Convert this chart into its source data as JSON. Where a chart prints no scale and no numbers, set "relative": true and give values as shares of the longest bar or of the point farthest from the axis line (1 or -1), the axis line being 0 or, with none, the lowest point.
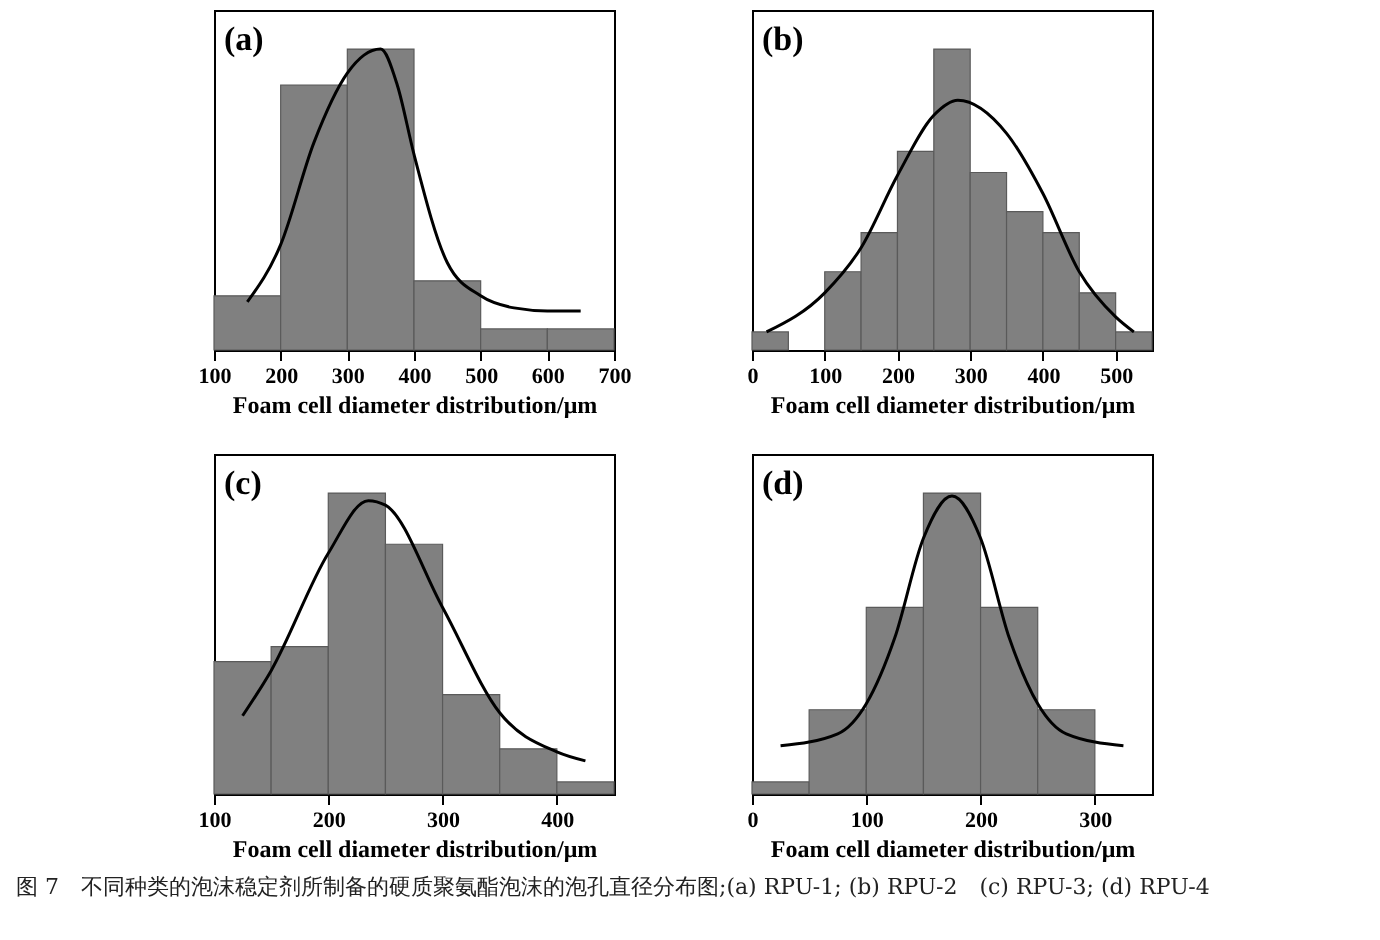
{
  "chart_data": [
    {
      "type": "histogram",
      "title": "(a)",
      "xlabel": "Foam cell diameter distribution/μm",
      "relative": true,
      "tick_labels": "x",
      "color": "#808080",
      "xlim": [
        100,
        700
      ],
      "xticks": [
        100,
        200,
        300,
        400,
        500,
        600,
        700
      ],
      "bins": [
        100,
        200,
        300,
        400,
        500,
        600,
        700
      ],
      "values": [
        0.18,
        0.88,
        1,
        0.23,
        0.07,
        0.07
      ],
      "series": [
        {
          "type": "line",
          "color": "#000000",
          "x": [
            150,
            200,
            250,
            300,
            325,
            350,
            375,
            400,
            450,
            500,
            550,
            600,
            650
          ],
          "values": [
            0.16,
            0.35,
            0.69,
            0.92,
            0.98,
            1,
            0.88,
            0.65,
            0.29,
            0.18,
            0.14,
            0.13,
            0.13
          ]
        }
      ],
      "annotations": [
        "图 7　不同种类的泡沫稳定剂所制备的硬质聚氨酯泡沫的泡孔直径分布图;(a) RPU-1; (b) RPU-2　(c) RPU-3; (d) RPU-4"
      ]
    },
    {
      "type": "histogram",
      "title": "(b)",
      "xlabel": "Foam cell diameter distribution/μm",
      "relative": true,
      "tick_labels": "x",
      "color": "#808080",
      "xlim": [
        0,
        550
      ],
      "xticks": [
        0,
        100,
        200,
        300,
        400,
        500
      ],
      "bins": [
        0,
        50,
        100,
        150,
        200,
        250,
        300,
        350,
        400,
        450,
        500,
        550
      ],
      "values": [
        0.06,
        0,
        0.26,
        0.39,
        0.66,
        1,
        0.59,
        0.46,
        0.39,
        0.19,
        0.06
      ],
      "series": [
        {
          "type": "line",
          "color": "#000000",
          "x": [
            20,
            100,
            150,
            200,
            250,
            283,
            350,
            400,
            450,
            500,
            525
          ],
          "values": [
            0.06,
            0.19,
            0.34,
            0.58,
            0.78,
            0.83,
            0.72,
            0.52,
            0.26,
            0.11,
            0.06
          ]
        }
      ]
    },
    {
      "type": "histogram",
      "title": "(c)",
      "xlabel": "Foam cell diameter distribution/μm",
      "relative": true,
      "tick_labels": "x",
      "color": "#808080",
      "xlim": [
        100,
        450
      ],
      "xticks": [
        100,
        200,
        300,
        400
      ],
      "bins": [
        100,
        150,
        200,
        250,
        300,
        350,
        400,
        450
      ],
      "values": [
        0.44,
        0.49,
        1,
        0.83,
        0.33,
        0.15,
        0.04
      ],
      "series": [
        {
          "type": "line",
          "color": "#000000",
          "x": [
            125,
            150,
            200,
            235,
            250,
            300,
            350,
            400,
            425
          ],
          "values": [
            0.26,
            0.41,
            0.8,
            0.975,
            0.96,
            0.62,
            0.27,
            0.14,
            0.11
          ]
        }
      ]
    },
    {
      "type": "histogram",
      "title": "(d)",
      "xlabel": "Foam cell diameter distribution/μm",
      "relative": true,
      "tick_labels": "x",
      "color": "#808080",
      "xlim": [
        0,
        350
      ],
      "xticks": [
        0,
        100,
        200,
        300
      ],
      "bins": [
        0,
        50,
        100,
        150,
        200,
        250,
        300
      ],
      "values": [
        0.04,
        0.28,
        0.62,
        1,
        0.62,
        0.28
      ],
      "series": [
        {
          "type": "line",
          "color": "#000000",
          "x": [
            25,
            75,
            100,
            125,
            150,
            175,
            200,
            225,
            250,
            275,
            325
          ],
          "values": [
            0.16,
            0.2,
            0.3,
            0.52,
            0.85,
            0.99,
            0.85,
            0.52,
            0.3,
            0.2,
            0.16
          ]
        }
      ]
    }
  ]
}
